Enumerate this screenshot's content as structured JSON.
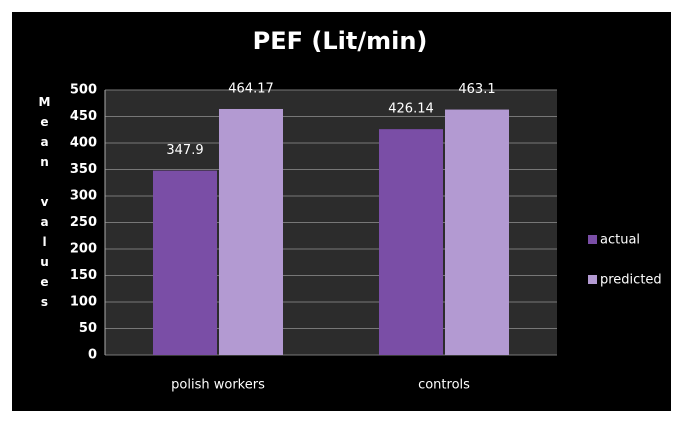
{
  "chart_data": {
    "type": "bar",
    "title": "PEF (Lit/min)",
    "y_label": "Mean values",
    "categories": [
      "polish workers",
      "controls"
    ],
    "series": [
      {
        "name": "actual",
        "color": "#7a4ea6",
        "values": [
          347.9,
          426.14
        ]
      },
      {
        "name": "predicted",
        "color": "#b39ad2",
        "values": [
          464.17,
          463.1
        ]
      }
    ],
    "ylim": [
      0,
      500
    ],
    "yticks": [
      0,
      50,
      100,
      150,
      200,
      250,
      300,
      350,
      400,
      450,
      500
    ],
    "grid": true,
    "legend": "right"
  }
}
